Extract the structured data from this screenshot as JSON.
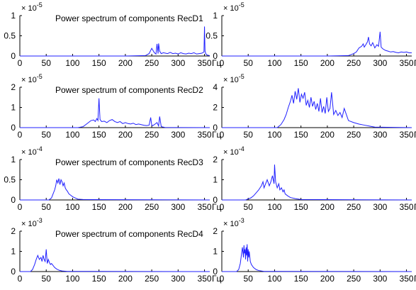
{
  "chart_data": [
    {
      "type": "line",
      "title": "Power spectrum of components RecD1",
      "x_unit_label": "Гц",
      "y_exponent_label": "× 10",
      "y_exponent_power": "-5",
      "xlim": [
        0,
        360
      ],
      "ylim": [
        0,
        1
      ],
      "xticks": [
        "0",
        "50",
        "100",
        "150",
        "200",
        "250",
        "300",
        "350"
      ],
      "yticks": [
        "0",
        "0.5",
        "1"
      ],
      "series": [
        {
          "x": [
            0,
            200,
            238,
            245,
            250,
            255,
            258,
            260,
            262,
            263,
            265,
            268,
            272,
            276,
            280,
            285,
            290,
            295,
            300,
            305,
            310,
            315,
            320,
            325,
            330,
            335,
            340,
            345,
            349,
            350,
            351,
            353,
            356,
            360
          ],
          "y": [
            0,
            0,
            0.01,
            0.06,
            0.19,
            0.08,
            0.05,
            0.3,
            0.06,
            0.31,
            0.12,
            0.06,
            0.08,
            0.07,
            0.06,
            0.09,
            0.06,
            0.07,
            0.05,
            0.08,
            0.06,
            0.05,
            0.07,
            0.06,
            0.08,
            0.05,
            0.06,
            0.07,
            0.1,
            0.73,
            0.12,
            0.04,
            0.02,
            0.01
          ]
        }
      ]
    },
    {
      "type": "line",
      "title": "",
      "x_unit_label": "Гц",
      "y_exponent_label": "× 10",
      "y_exponent_power": "-5",
      "xlim": [
        0,
        360
      ],
      "ylim": [
        0,
        1
      ],
      "xticks": [
        "0",
        "50",
        "100",
        "150",
        "200",
        "250",
        "300",
        "350"
      ],
      "yticks": [
        "0",
        "0.5",
        "1"
      ],
      "series": [
        {
          "x": [
            0,
            200,
            240,
            250,
            255,
            260,
            265,
            268,
            270,
            273,
            276,
            278,
            280,
            283,
            286,
            290,
            294,
            297,
            298,
            300,
            302,
            305,
            310,
            315,
            320,
            325,
            330,
            335,
            340,
            345,
            350,
            355,
            360
          ],
          "y": [
            0,
            0,
            0.01,
            0.06,
            0.1,
            0.2,
            0.24,
            0.3,
            0.22,
            0.28,
            0.35,
            0.47,
            0.3,
            0.25,
            0.33,
            0.2,
            0.28,
            0.24,
            0.35,
            0.6,
            0.22,
            0.18,
            0.14,
            0.12,
            0.1,
            0.11,
            0.09,
            0.08,
            0.1,
            0.09,
            0.1,
            0.08,
            0.08
          ]
        }
      ]
    },
    {
      "type": "line",
      "title": "Power spectrum of components RecD2",
      "x_unit_label": "Гц",
      "y_exponent_label": "× 10",
      "y_exponent_power": "-5",
      "xlim": [
        0,
        360
      ],
      "ylim": [
        0,
        2
      ],
      "xticks": [
        "0",
        "50",
        "100",
        "150",
        "200",
        "250",
        "300",
        "350"
      ],
      "yticks": [
        "0",
        "1",
        "2"
      ],
      "series": [
        {
          "x": [
            0,
            110,
            120,
            125,
            130,
            135,
            140,
            143,
            146,
            148,
            150,
            152,
            155,
            160,
            165,
            170,
            175,
            180,
            185,
            190,
            195,
            200,
            205,
            210,
            215,
            220,
            225,
            230,
            235,
            240,
            245,
            248,
            250,
            252,
            255,
            260,
            263,
            265,
            268,
            275,
            360
          ],
          "y": [
            0,
            0,
            0.05,
            0.15,
            0.25,
            0.35,
            0.38,
            0.3,
            0.45,
            0.35,
            1.45,
            0.4,
            0.3,
            0.32,
            0.25,
            0.35,
            0.4,
            0.3,
            0.25,
            0.3,
            0.2,
            0.25,
            0.2,
            0.18,
            0.22,
            0.15,
            0.18,
            0.15,
            0.12,
            0.1,
            0.12,
            0.5,
            0.12,
            0.1,
            0.15,
            0.25,
            0.08,
            0.55,
            0.05,
            0.01,
            0
          ]
        }
      ]
    },
    {
      "type": "line",
      "title": "",
      "x_unit_label": "Гц",
      "y_exponent_label": "× 10",
      "y_exponent_power": "-5",
      "xlim": [
        0,
        360
      ],
      "ylim": [
        0,
        4
      ],
      "xticks": [
        "0",
        "50",
        "100",
        "150",
        "200",
        "250",
        "300",
        "350"
      ],
      "yticks": [
        "0",
        "2",
        "4"
      ],
      "series": [
        {
          "x": [
            0,
            105,
            112,
            118,
            122,
            126,
            130,
            133,
            136,
            139,
            142,
            145,
            148,
            151,
            154,
            157,
            160,
            163,
            166,
            169,
            172,
            175,
            178,
            181,
            184,
            187,
            190,
            193,
            196,
            199,
            202,
            205,
            208,
            212,
            216,
            220,
            224,
            228,
            232,
            240,
            250,
            260,
            270,
            280,
            290,
            360
          ],
          "y": [
            0,
            0,
            0.3,
            0.8,
            1.3,
            2.0,
            2.6,
            3.2,
            2.4,
            3.6,
            2.8,
            3.9,
            2.5,
            3.3,
            2.9,
            3.5,
            2.2,
            2.7,
            2.0,
            3.0,
            2.1,
            2.6,
            1.8,
            2.4,
            1.6,
            2.9,
            1.5,
            2.1,
            1.4,
            3.0,
            1.6,
            1.9,
            3.5,
            1.3,
            1.7,
            1.2,
            1.5,
            1.0,
            1.9,
            0.7,
            0.5,
            0.35,
            0.25,
            0.15,
            0.05,
            0
          ]
        }
      ]
    },
    {
      "type": "line",
      "title": "Power spectrum of components RecD3",
      "x_unit_label": "Гц",
      "y_exponent_label": "× 10",
      "y_exponent_power": "-4",
      "xlim": [
        0,
        360
      ],
      "ylim": [
        0,
        1
      ],
      "xticks": [
        "0",
        "50",
        "100",
        "150",
        "200",
        "250",
        "300",
        "350"
      ],
      "yticks": [
        "0",
        "0.5",
        "1"
      ],
      "series": [
        {
          "x": [
            0,
            55,
            60,
            63,
            66,
            68,
            70,
            72,
            74,
            76,
            78,
            80,
            82,
            84,
            86,
            88,
            90,
            93,
            96,
            100,
            105,
            110,
            120,
            360
          ],
          "y": [
            0,
            0,
            0.05,
            0.15,
            0.25,
            0.35,
            0.5,
            0.42,
            0.53,
            0.38,
            0.5,
            0.45,
            0.35,
            0.42,
            0.3,
            0.25,
            0.22,
            0.15,
            0.12,
            0.08,
            0.05,
            0.02,
            0.01,
            0
          ]
        }
      ]
    },
    {
      "type": "line",
      "title": "",
      "x_unit_label": "Гц",
      "y_exponent_label": "× 10",
      "y_exponent_power": "-4",
      "xlim": [
        0,
        360
      ],
      "ylim": [
        0,
        2
      ],
      "xticks": [
        "0",
        "50",
        "100",
        "150",
        "200",
        "250",
        "300",
        "350"
      ],
      "yticks": [
        "0",
        "1",
        "2"
      ],
      "series": [
        {
          "x": [
            0,
            45,
            50,
            55,
            60,
            65,
            70,
            75,
            78,
            80,
            83,
            86,
            90,
            93,
            96,
            99,
            100,
            102,
            105,
            108,
            110,
            113,
            116,
            118,
            120,
            125,
            130,
            140,
            150,
            360
          ],
          "y": [
            0,
            0,
            0.05,
            0.1,
            0.2,
            0.35,
            0.5,
            0.7,
            0.9,
            0.6,
            0.8,
            1.0,
            0.7,
            0.9,
            1.2,
            0.8,
            1.75,
            0.9,
            0.6,
            0.8,
            0.5,
            0.6,
            0.4,
            0.5,
            0.3,
            0.2,
            0.12,
            0.06,
            0.02,
            0
          ]
        }
      ]
    },
    {
      "type": "line",
      "title": "Power spectrum of components RecD4",
      "x_unit_label": "Гц",
      "y_exponent_label": "× 10",
      "y_exponent_power": "-3",
      "xlim": [
        0,
        360
      ],
      "ylim": [
        0,
        2
      ],
      "xticks": [
        "0",
        "50",
        "100",
        "150",
        "200",
        "250",
        "300",
        "350"
      ],
      "yticks": [
        "0",
        "1",
        "2"
      ],
      "series": [
        {
          "x": [
            0,
            20,
            24,
            28,
            31,
            34,
            37,
            40,
            42,
            44,
            46,
            48,
            50,
            52,
            54,
            56,
            58,
            60,
            63,
            66,
            70,
            75,
            80,
            90,
            360
          ],
          "y": [
            0,
            0,
            0.1,
            0.35,
            0.6,
            0.8,
            0.6,
            0.7,
            0.5,
            0.8,
            0.6,
            0.5,
            1.1,
            0.4,
            0.6,
            0.45,
            0.35,
            0.4,
            0.3,
            0.2,
            0.12,
            0.06,
            0.03,
            0.01,
            0
          ]
        }
      ]
    },
    {
      "type": "line",
      "title": "",
      "x_unit_label": "Гц",
      "y_exponent_label": "× 10",
      "y_exponent_power": "-3",
      "xlim": [
        0,
        360
      ],
      "ylim": [
        0,
        2
      ],
      "xticks": [
        "0",
        "50",
        "100",
        "150",
        "200",
        "250",
        "300",
        "350"
      ],
      "yticks": [
        "0",
        "1",
        "2"
      ],
      "series": [
        {
          "x": [
            0,
            28,
            32,
            35,
            37,
            39,
            41,
            42,
            43,
            44,
            45,
            46,
            47,
            48,
            49,
            50,
            51,
            52,
            54,
            56,
            60,
            65,
            70,
            80,
            360
          ],
          "y": [
            0,
            0,
            0.1,
            0.4,
            0.8,
            1.2,
            0.7,
            1.3,
            0.9,
            1.1,
            0.6,
            1.2,
            0.8,
            1.35,
            0.5,
            1.1,
            0.7,
            1.0,
            0.5,
            0.35,
            0.2,
            0.1,
            0.05,
            0.01,
            0
          ]
        }
      ]
    }
  ]
}
